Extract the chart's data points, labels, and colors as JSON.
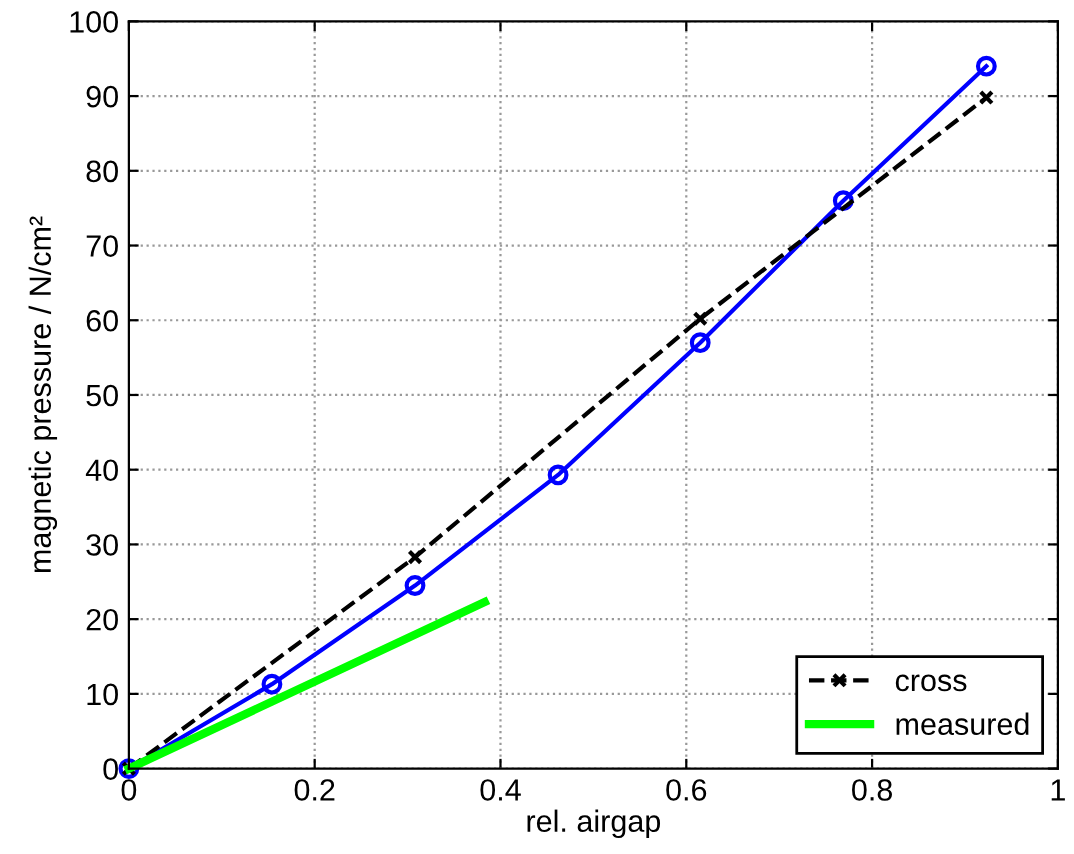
{
  "chart_data": {
    "type": "line",
    "xlabel": "rel. airgap",
    "ylabel": "magnetic pressure / N/cm²",
    "xlim": [
      0,
      1
    ],
    "ylim": [
      0,
      100
    ],
    "xticks": [
      0,
      0.2,
      0.4,
      0.6,
      0.8,
      1
    ],
    "yticks": [
      0,
      10,
      20,
      30,
      40,
      50,
      60,
      70,
      80,
      90,
      100
    ],
    "grid": true,
    "legend": "bottom right",
    "series": [
      {
        "color": "#0000ff",
        "marker": "circle",
        "line_style": "solid",
        "x": [
          0,
          0.154,
          0.308,
          0.462,
          0.615,
          0.769,
          0.923
        ],
        "values": [
          0,
          11.3,
          24.5,
          39.3,
          57,
          76,
          94
        ]
      },
      {
        "name": "cross",
        "color": "#000000",
        "marker": "cross",
        "line_style": "dashed",
        "x": [
          0,
          0.308,
          0.615,
          0.923
        ],
        "values": [
          0,
          28.3,
          60.2,
          89.8
        ]
      },
      {
        "name": "measured",
        "color": "#00ff00",
        "marker": "none",
        "line_style": "solid",
        "x": [
          0,
          0.383
        ],
        "values": [
          0,
          22.3
        ]
      }
    ]
  }
}
